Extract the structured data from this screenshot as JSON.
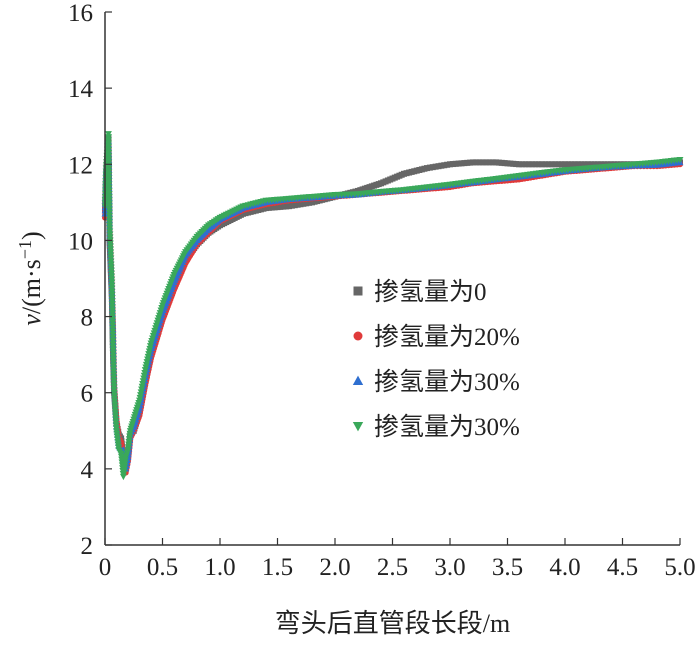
{
  "chart_data": {
    "type": "scatter",
    "title": "",
    "xlabel": "弯头后直管段长段/m",
    "ylabel": {
      "symbol": "v",
      "unit_open": "/(m·s",
      "unit_exp": "−1",
      "unit_close": ")"
    },
    "xlim": [
      0,
      5.0
    ],
    "ylim": [
      2,
      16
    ],
    "x_ticks": [
      "0",
      "0.5",
      "1.0",
      "1.5",
      "2.0",
      "2.5",
      "3.0",
      "3.5",
      "4.0",
      "4.5",
      "5.0"
    ],
    "y_ticks": [
      "2",
      "4",
      "6",
      "8",
      "10",
      "12",
      "14",
      "16"
    ],
    "grid": false,
    "legend_position": "center-right",
    "series": [
      {
        "name": "掺氢量为0",
        "marker": "square",
        "color": "#666666",
        "x": [
          0.0,
          0.01,
          0.03,
          0.04,
          0.06,
          0.07,
          0.08,
          0.1,
          0.12,
          0.14,
          0.16,
          0.18,
          0.2,
          0.22,
          0.25,
          0.3,
          0.35,
          0.4,
          0.5,
          0.6,
          0.7,
          0.8,
          0.9,
          1.0,
          1.2,
          1.4,
          1.6,
          1.8,
          2.0,
          2.2,
          2.4,
          2.6,
          2.8,
          3.0,
          3.2,
          3.4,
          3.6,
          3.8,
          4.0,
          4.2,
          4.4,
          4.6,
          4.8,
          5.0
        ],
        "y": [
          10.8,
          11.8,
          12.7,
          10.0,
          8.5,
          7.0,
          6.0,
          5.2,
          4.9,
          4.8,
          4.3,
          4.0,
          4.3,
          4.9,
          5.0,
          5.5,
          6.3,
          7.0,
          8.0,
          8.8,
          9.5,
          9.9,
          10.2,
          10.4,
          10.7,
          10.85,
          10.9,
          11.0,
          11.15,
          11.3,
          11.5,
          11.75,
          11.9,
          12.0,
          12.05,
          12.05,
          12.0,
          12.0,
          12.0,
          12.0,
          12.0,
          12.0,
          12.0,
          12.05
        ]
      },
      {
        "name": "掺氢量为20%",
        "marker": "circle",
        "color": "#e03a3a",
        "x": [
          0.0,
          0.01,
          0.03,
          0.04,
          0.06,
          0.07,
          0.08,
          0.1,
          0.12,
          0.14,
          0.16,
          0.18,
          0.2,
          0.22,
          0.25,
          0.3,
          0.35,
          0.4,
          0.5,
          0.6,
          0.7,
          0.8,
          0.9,
          1.0,
          1.2,
          1.4,
          1.6,
          1.8,
          2.0,
          2.2,
          2.4,
          2.6,
          2.8,
          3.0,
          3.2,
          3.4,
          3.6,
          3.8,
          4.0,
          4.2,
          4.4,
          4.6,
          4.8,
          5.0
        ],
        "y": [
          10.6,
          11.6,
          12.5,
          10.3,
          8.8,
          7.7,
          6.2,
          5.3,
          4.8,
          4.7,
          4.4,
          3.9,
          4.2,
          4.8,
          5.0,
          5.4,
          6.2,
          6.9,
          7.9,
          8.7,
          9.4,
          9.9,
          10.2,
          10.5,
          10.8,
          10.95,
          11.05,
          11.1,
          11.15,
          11.2,
          11.25,
          11.3,
          11.35,
          11.4,
          11.5,
          11.55,
          11.6,
          11.7,
          11.8,
          11.85,
          11.9,
          11.95,
          11.95,
          12.0
        ]
      },
      {
        "name": "掺氢量为30%",
        "marker": "triangle",
        "color": "#2f6fd0",
        "x": [
          0.0,
          0.01,
          0.03,
          0.04,
          0.06,
          0.07,
          0.08,
          0.1,
          0.12,
          0.14,
          0.16,
          0.18,
          0.2,
          0.22,
          0.25,
          0.3,
          0.35,
          0.4,
          0.5,
          0.6,
          0.7,
          0.8,
          0.9,
          1.0,
          1.2,
          1.4,
          1.6,
          1.8,
          2.0,
          2.2,
          2.4,
          2.6,
          2.8,
          3.0,
          3.2,
          3.4,
          3.6,
          3.8,
          4.0,
          4.2,
          4.4,
          4.6,
          4.8,
          5.0
        ],
        "y": [
          10.7,
          11.7,
          12.6,
          10.2,
          8.7,
          7.5,
          6.1,
          5.1,
          4.6,
          4.5,
          4.5,
          4.0,
          4.3,
          4.9,
          5.1,
          5.6,
          6.4,
          7.1,
          8.1,
          8.9,
          9.6,
          10.0,
          10.3,
          10.55,
          10.85,
          11.0,
          11.08,
          11.12,
          11.17,
          11.2,
          11.27,
          11.32,
          11.38,
          11.45,
          11.52,
          11.6,
          11.67,
          11.74,
          11.82,
          11.88,
          11.93,
          11.96,
          11.98,
          12.05
        ]
      },
      {
        "name": "掺氢量为30%",
        "marker": "triangle-down",
        "color": "#3aa85a",
        "x": [
          0.0,
          0.01,
          0.03,
          0.04,
          0.06,
          0.07,
          0.08,
          0.1,
          0.12,
          0.14,
          0.16,
          0.18,
          0.2,
          0.22,
          0.25,
          0.3,
          0.35,
          0.4,
          0.5,
          0.6,
          0.7,
          0.8,
          0.9,
          1.0,
          1.2,
          1.4,
          1.6,
          1.8,
          2.0,
          2.2,
          2.4,
          2.6,
          2.8,
          3.0,
          3.2,
          3.4,
          3.6,
          3.8,
          4.0,
          4.2,
          4.4,
          4.6,
          4.8,
          5.0
        ],
        "y": [
          10.9,
          11.9,
          12.8,
          10.4,
          8.9,
          7.2,
          6.0,
          5.0,
          4.5,
          4.4,
          3.8,
          4.3,
          4.5,
          5.0,
          5.3,
          5.8,
          6.6,
          7.3,
          8.3,
          9.1,
          9.7,
          10.1,
          10.4,
          10.6,
          10.9,
          11.05,
          11.1,
          11.15,
          11.2,
          11.22,
          11.28,
          11.33,
          11.4,
          11.47,
          11.55,
          11.62,
          11.7,
          11.78,
          11.85,
          11.9,
          11.95,
          12.0,
          12.05,
          12.12
        ]
      }
    ]
  }
}
